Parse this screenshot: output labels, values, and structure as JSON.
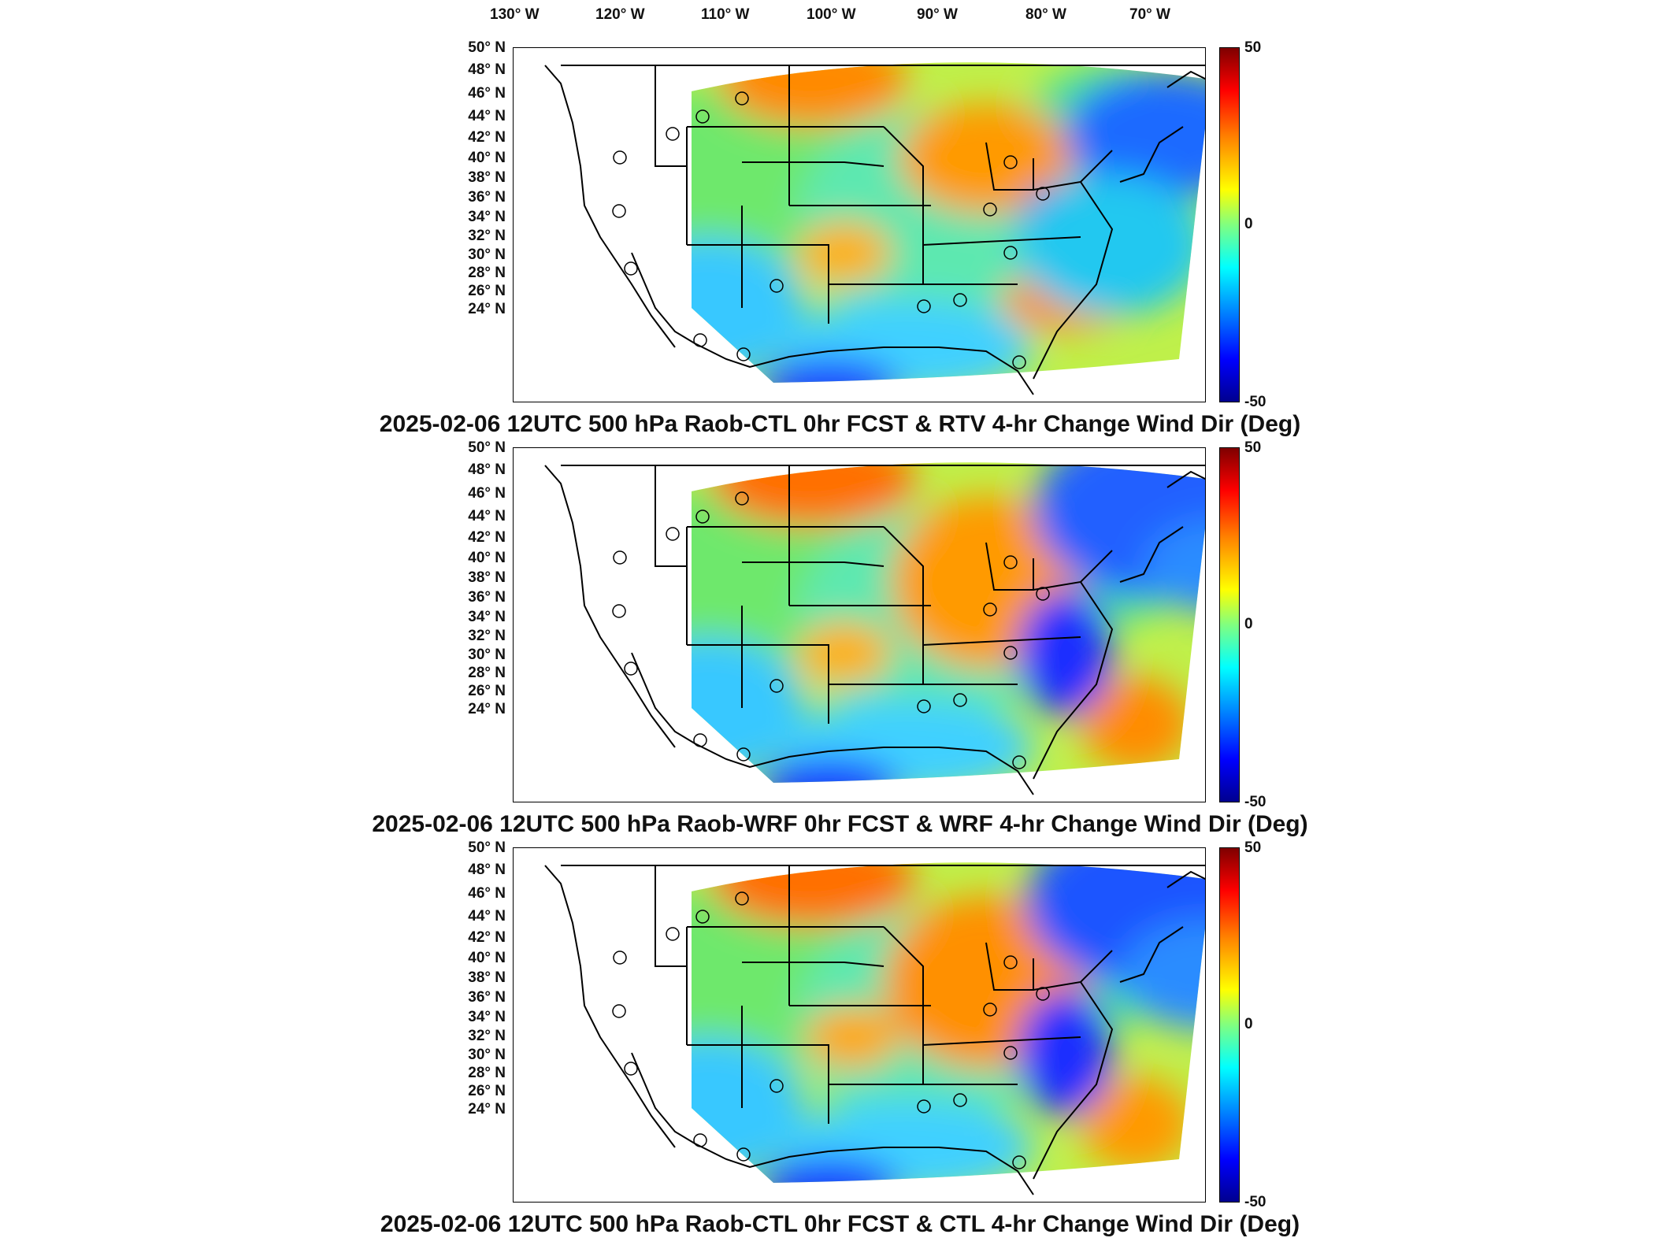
{
  "longitude_labels": [
    "130° W",
    "120° W",
    "110° W",
    "100° W",
    "90° W",
    "80° W",
    "70° W"
  ],
  "latitude_labels": [
    "50° N",
    "48° N",
    "46° N",
    "44° N",
    "42° N",
    "40° N",
    "38° N",
    "36° N",
    "34° N",
    "32° N",
    "30° N",
    "28° N",
    "26° N",
    "24° N"
  ],
  "colorbar": {
    "max": "50",
    "mid": "0",
    "min": "-50",
    "colors": [
      "#7f0000",
      "#ff0000",
      "#ff8000",
      "#ffff00",
      "#80ff80",
      "#00ffff",
      "#0080ff",
      "#0000ff",
      "#00008f"
    ]
  },
  "panels": [
    {
      "title": "2025-02-06 12UTC 500 hPa Raob-CTL 0hr FCST & RTV 4-hr Change Wind Dir (Deg)"
    },
    {
      "title": "2025-02-06 12UTC 500 hPa Raob-WRF 0hr FCST & WRF 4-hr Change Wind Dir (Deg)"
    },
    {
      "title": "2025-02-06 12UTC 500 hPa Raob-CTL 0hr FCST & CTL 4-hr Change Wind Dir (Deg)"
    }
  ],
  "station_markers": "circle-icon"
}
